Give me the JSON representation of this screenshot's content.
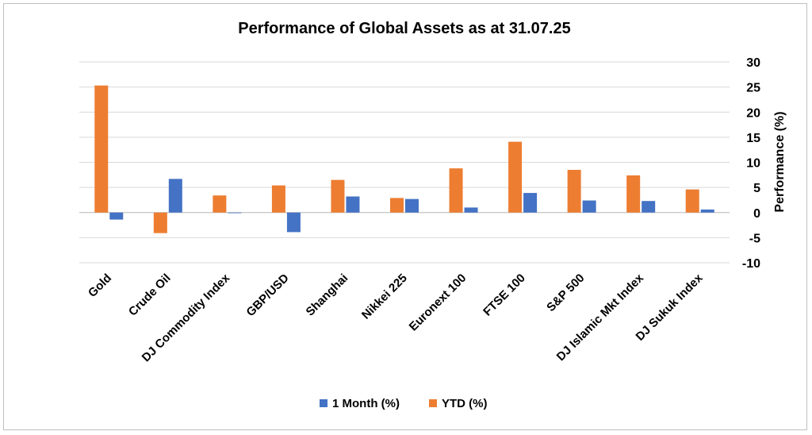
{
  "chart_data": {
    "type": "bar",
    "title": "Performance of Global Assets as at 31.07.25",
    "xlabel": "",
    "ylabel": "Performance (%)",
    "ylim": [
      -10,
      30
    ],
    "yticks": [
      "30",
      "25",
      "20",
      "15",
      "10",
      "5",
      "0",
      "-5",
      "-10"
    ],
    "categories": [
      "Gold",
      "Crude Oil",
      "DJ Commodity Index",
      "GBP/USD",
      "Shanghai",
      "Nikkei 225",
      "Euronext 100",
      "FTSE 100",
      "S&P 500",
      "DJ Islamic Mkt Index",
      "DJ Sukuk Index"
    ],
    "series": [
      {
        "name": "YTD (%)",
        "color": "#ed7d31",
        "values": [
          25.3,
          -4.1,
          3.4,
          5.4,
          6.5,
          2.9,
          8.8,
          14.1,
          8.5,
          7.4,
          4.6
        ]
      },
      {
        "name": "1 Month (%)",
        "color": "#4472c4",
        "values": [
          -1.4,
          6.7,
          -0.1,
          -3.9,
          3.2,
          2.7,
          1.0,
          3.9,
          2.4,
          2.3,
          0.6
        ]
      }
    ],
    "legend": [
      "1 Month (%)",
      "YTD (%)"
    ],
    "legend_position": "bottom",
    "grid": true
  }
}
